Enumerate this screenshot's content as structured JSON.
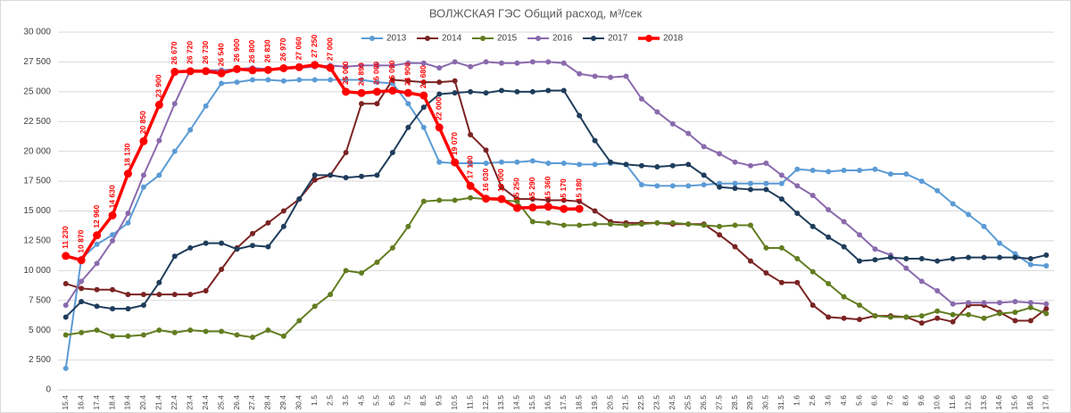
{
  "chart_data": {
    "type": "line",
    "title": "ВОЛЖСКАЯ ГЭС Общий расход, м³/сек",
    "categories": [
      "15.4",
      "16.4",
      "17.4",
      "18.4",
      "19.4",
      "20.4",
      "21.4",
      "22.4",
      "23.4",
      "24.4",
      "25.4",
      "26.4",
      "27.4",
      "28.4",
      "29.4",
      "30.4",
      "1.5",
      "2.5",
      "3.5",
      "4.5",
      "5.5",
      "6.5",
      "7.5",
      "8.5",
      "9.5",
      "10.5",
      "11.5",
      "12.5",
      "13.5",
      "14.5",
      "15.5",
      "16.5",
      "17.5",
      "18.5",
      "19.5",
      "20.5",
      "21.5",
      "22.5",
      "23.5",
      "24.5",
      "25.5",
      "26.5",
      "27.5",
      "28.5",
      "29.5",
      "30.5",
      "31.5",
      "1.6",
      "2.6",
      "3.6",
      "4.6",
      "5.6",
      "6.6",
      "7.6",
      "8.6",
      "9.6",
      "10.6",
      "11.6",
      "12.6",
      "13.6",
      "14.6",
      "15.6",
      "16.6",
      "17.6"
    ],
    "ylim": [
      0,
      30000
    ],
    "yticks": [
      0,
      {
        "value": 2500,
        "label": "2 500"
      },
      {
        "value": 5000,
        "label": "5 000"
      },
      {
        "value": 7500,
        "label": "7 500"
      },
      {
        "value": 10000,
        "label": "10 000"
      },
      {
        "value": 12500,
        "label": "12 500"
      },
      {
        "value": 15000,
        "label": "15 000"
      },
      {
        "value": 17500,
        "label": "17 500"
      },
      {
        "value": 20000,
        "label": "20 000"
      },
      {
        "value": 22500,
        "label": "22 500"
      },
      {
        "value": 25000,
        "label": "25 000"
      },
      {
        "value": 27500,
        "label": "27 500"
      },
      {
        "value": 30000,
        "label": "30 000"
      }
    ],
    "grid": true,
    "legend": "top",
    "series": [
      {
        "name": "2013",
        "color": "#5b9bd5",
        "values": [
          1800,
          11000,
          12200,
          13000,
          14000,
          17000,
          18000,
          20000,
          21800,
          23800,
          25700,
          25800,
          26000,
          26000,
          25900,
          26000,
          26000,
          26000,
          26000,
          26000,
          25800,
          25700,
          24000,
          22000,
          19100,
          19000,
          19000,
          19000,
          19100,
          19100,
          19200,
          19000,
          19000,
          18900,
          18900,
          19000,
          18900,
          17200,
          17100,
          17100,
          17100,
          17200,
          17300,
          17300,
          17300,
          17300,
          17300,
          18500,
          18400,
          18300,
          18400,
          18400,
          18500,
          18100,
          18100,
          17500,
          16700,
          15600,
          14700,
          13700,
          12300,
          11400,
          10500,
          10400
        ]
      },
      {
        "name": "2014",
        "color": "#7b2323",
        "values": [
          8900,
          8500,
          8400,
          8400,
          8000,
          8000,
          8000,
          8000,
          8000,
          8300,
          10100,
          11900,
          13100,
          14000,
          15000,
          16000,
          17600,
          18000,
          19900,
          24000,
          24000,
          26000,
          25900,
          25800,
          25800,
          25900,
          21400,
          20100,
          17000,
          16000,
          16000,
          15900,
          15900,
          15800,
          15000,
          14100,
          14000,
          14000,
          14000,
          13900,
          13900,
          13900,
          13000,
          12000,
          10800,
          9800,
          9000,
          9000,
          7100,
          6100,
          6000,
          5900,
          6200,
          6200,
          6100,
          5600,
          6000,
          5700,
          7100,
          7100,
          6500,
          5800,
          5800,
          6800
        ]
      },
      {
        "name": "2015",
        "color": "#627d20",
        "values": [
          4600,
          4800,
          5000,
          4500,
          4500,
          4600,
          5000,
          4800,
          5000,
          4900,
          4900,
          4600,
          4400,
          5000,
          4500,
          5800,
          7000,
          8000,
          10000,
          9800,
          10700,
          11900,
          13700,
          15800,
          15900,
          15900,
          16100,
          16000,
          15900,
          15800,
          14100,
          14000,
          13800,
          13800,
          13900,
          13900,
          13800,
          13900,
          14000,
          14000,
          13900,
          13800,
          13700,
          13800,
          13800,
          11900,
          11900,
          11000,
          9900,
          8900,
          7800,
          7100,
          6200,
          6100,
          6100,
          6200,
          6600,
          6300,
          6300,
          6000,
          6400,
          6500,
          6900,
          6400
        ]
      },
      {
        "name": "2016",
        "color": "#8a6aad",
        "values": [
          7100,
          9100,
          10600,
          12500,
          14800,
          18000,
          20900,
          24000,
          26800,
          26800,
          26800,
          26900,
          27000,
          26900,
          26900,
          27000,
          27100,
          27200,
          27100,
          27200,
          27200,
          27200,
          27400,
          27400,
          27000,
          27500,
          27100,
          27500,
          27400,
          27400,
          27500,
          27500,
          27400,
          26500,
          26300,
          26200,
          26300,
          24400,
          23300,
          22300,
          21500,
          20400,
          19800,
          19100,
          18800,
          19000,
          18000,
          17100,
          16300,
          15100,
          14100,
          13000,
          11800,
          11300,
          10200,
          9100,
          8300,
          7200,
          7300,
          7300,
          7300,
          7400,
          7300,
          7200
        ]
      },
      {
        "name": "2017",
        "color": "#1f3d5c",
        "values": [
          6100,
          7400,
          7000,
          6800,
          6800,
          7100,
          9000,
          11200,
          11900,
          12300,
          12300,
          11800,
          12100,
          12000,
          13700,
          16000,
          18000,
          18000,
          17800,
          17900,
          18000,
          19900,
          22000,
          23700,
          24800,
          24900,
          25000,
          24900,
          25100,
          25000,
          25000,
          25100,
          25100,
          23000,
          20900,
          19100,
          18900,
          18800,
          18700,
          18800,
          18900,
          18000,
          17000,
          16900,
          16800,
          16800,
          16000,
          14800,
          13700,
          12800,
          12000,
          10800,
          10900,
          11100,
          11000,
          11000,
          10800,
          11000,
          11100,
          11100,
          11100,
          11100,
          11000,
          11300
        ]
      },
      {
        "name": "2018",
        "color": "#ff0000",
        "values": [
          11230,
          10870,
          12960,
          14630,
          18130,
          20850,
          23900,
          26670,
          26720,
          26730,
          26540,
          26900,
          26800,
          26830,
          26970,
          27060,
          27250,
          27000,
          25000,
          24890,
          25000,
          25090,
          24900,
          24680,
          22000,
          19070,
          17100,
          16030,
          16000,
          15250,
          15290,
          15360,
          15170,
          15180,
          null,
          null,
          null,
          null,
          null,
          null,
          null,
          null,
          null,
          null,
          null,
          null,
          null,
          null,
          null,
          null,
          null,
          null,
          null,
          null,
          null,
          null,
          null,
          null,
          null,
          null,
          null,
          null,
          null,
          null
        ],
        "value_labels": [
          "11 230",
          "10 870",
          "12 960",
          "14 630",
          "18 130",
          "20 850",
          "23 900",
          "26 670",
          "26 720",
          "26 730",
          "26 540",
          "26 900",
          "26 800",
          "26 830",
          "26 970",
          "27 060",
          "27 250",
          "27 000",
          "25 000",
          "24 890",
          "25 000",
          "25 090",
          "24 900",
          "24 680",
          "22 000",
          "19 070",
          "17 100",
          "16 030",
          "16 000",
          "15 250",
          "15 290",
          "15 360",
          "15 170",
          "15 180",
          null,
          null,
          null,
          null,
          null,
          null,
          null,
          null,
          null,
          null,
          null,
          null,
          null,
          null,
          null,
          null,
          null,
          null,
          null,
          null,
          null,
          null,
          null,
          null,
          null,
          null,
          null,
          null,
          null,
          null
        ]
      }
    ]
  }
}
